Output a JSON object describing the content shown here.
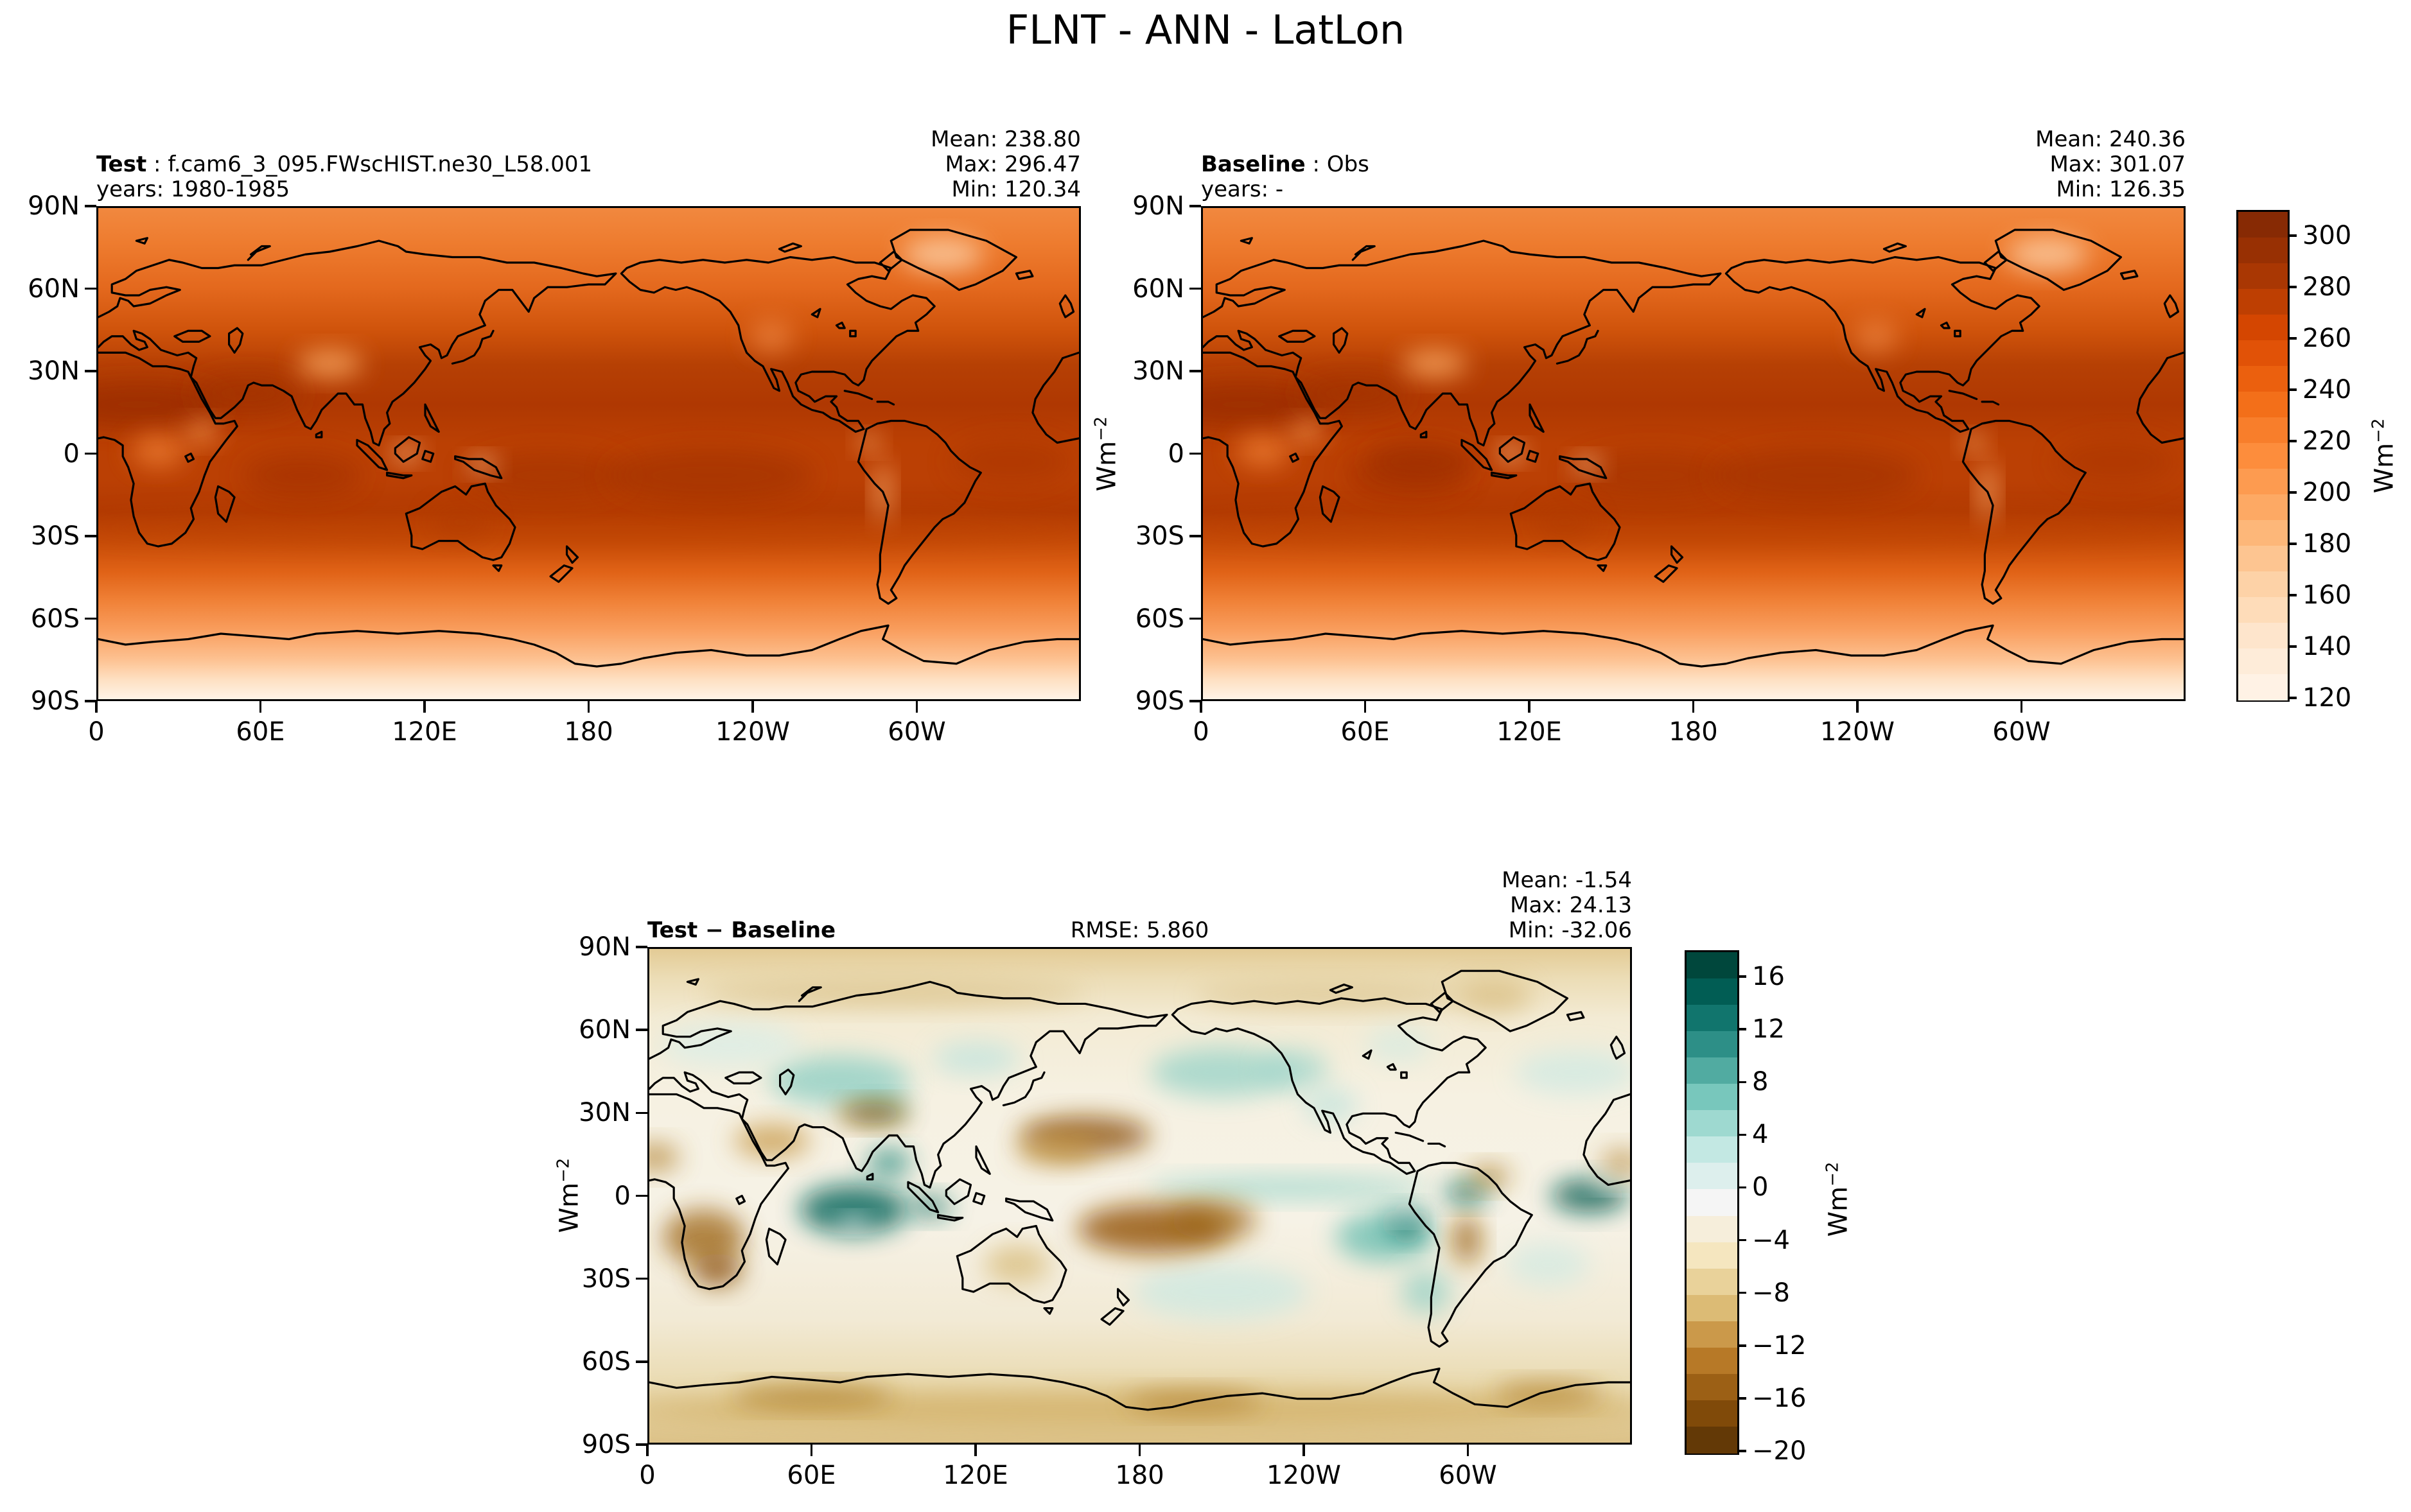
{
  "title": "FLNT - ANN - LatLon",
  "panels": {
    "test": {
      "label": "Test",
      "sep": " : ",
      "name": "f.cam6_3_095.FWscHIST.ne30_L58.001",
      "years": "years: 1980-1985",
      "mean": "Mean: 238.80",
      "max": "Max: 296.47",
      "min": "Min: 120.34"
    },
    "baseline": {
      "label": "Baseline",
      "sep": " : ",
      "name": "Obs",
      "years": "years: -",
      "mean": "Mean: 240.36",
      "max": "Max: 301.07",
      "min": "Min: 126.35"
    },
    "diff": {
      "label": "Test − Baseline",
      "rmse": "RMSE: 5.860",
      "mean": "Mean: -1.54",
      "max": "Max: 24.13",
      "min": "Min: -32.06"
    }
  },
  "axes": {
    "lon_labels": [
      "0",
      "60E",
      "120E",
      "180",
      "120W",
      "60W"
    ],
    "lon_values": [
      0,
      60,
      120,
      180,
      240,
      300
    ],
    "lat_labels": [
      "90N",
      "60N",
      "30N",
      "0",
      "30S",
      "60S",
      "90S"
    ],
    "lat_values": [
      90,
      60,
      30,
      0,
      -30,
      -60,
      -90
    ]
  },
  "unit": {
    "base": "Wm",
    "exp": "−2"
  },
  "colorbars": {
    "flux": {
      "range": [
        120,
        310
      ],
      "segments": 19,
      "tick_values": [
        300,
        280,
        260,
        240,
        220,
        200,
        180,
        160,
        140,
        120
      ],
      "tick_labels": [
        "300",
        "280",
        "260",
        "240",
        "220",
        "200",
        "180",
        "160",
        "140",
        "120"
      ],
      "cmap_name": "Oranges",
      "cmap": [
        "#fff5eb",
        "#fee6ce",
        "#fdd0a2",
        "#fdae6b",
        "#fd8d3c",
        "#f16913",
        "#d94801",
        "#a63603",
        "#7f2704"
      ]
    },
    "diff": {
      "range": [
        -20,
        18
      ],
      "segments": 19,
      "tick_values": [
        16,
        12,
        8,
        4,
        0,
        -4,
        -8,
        -12,
        -16,
        -20
      ],
      "tick_labels": [
        "16",
        "12",
        "8",
        "4",
        "0",
        "−4",
        "−8",
        "−12",
        "−16",
        "−20"
      ],
      "cmap_name": "BrBG",
      "cmap": [
        "#543005",
        "#8c510a",
        "#bf812d",
        "#dfc27d",
        "#f6e8c3",
        "#f5f5f5",
        "#c7eae5",
        "#80cdc1",
        "#35978f",
        "#01665e",
        "#003c30"
      ]
    }
  },
  "chart_data": {
    "type": "map-contour",
    "variable": "FLNT",
    "season": "ANN",
    "projection": "LatLon",
    "units": "Wm-2",
    "lon_ticks": [
      0,
      60,
      120,
      180,
      240,
      300
    ],
    "lat_ticks": [
      90,
      60,
      30,
      0,
      -30,
      -60,
      -90
    ],
    "panels": [
      {
        "name": "Test",
        "dataset": "f.cam6_3_095.FWscHIST.ne30_L58.001",
        "years": "1980-1985",
        "mean": 238.8,
        "max": 296.47,
        "min": 120.34,
        "colormap": "Oranges",
        "color_range": [
          120,
          310
        ],
        "contour_interval": 10
      },
      {
        "name": "Baseline",
        "dataset": "Obs",
        "years": "-",
        "mean": 240.36,
        "max": 301.07,
        "min": 126.35,
        "colormap": "Oranges",
        "color_range": [
          120,
          310
        ],
        "contour_interval": 10
      },
      {
        "name": "Test − Baseline",
        "rmse": 5.86,
        "mean": -1.54,
        "max": 24.13,
        "min": -32.06,
        "colormap": "BrBG",
        "color_range": [
          -20,
          18
        ],
        "contour_interval": 2
      }
    ]
  }
}
